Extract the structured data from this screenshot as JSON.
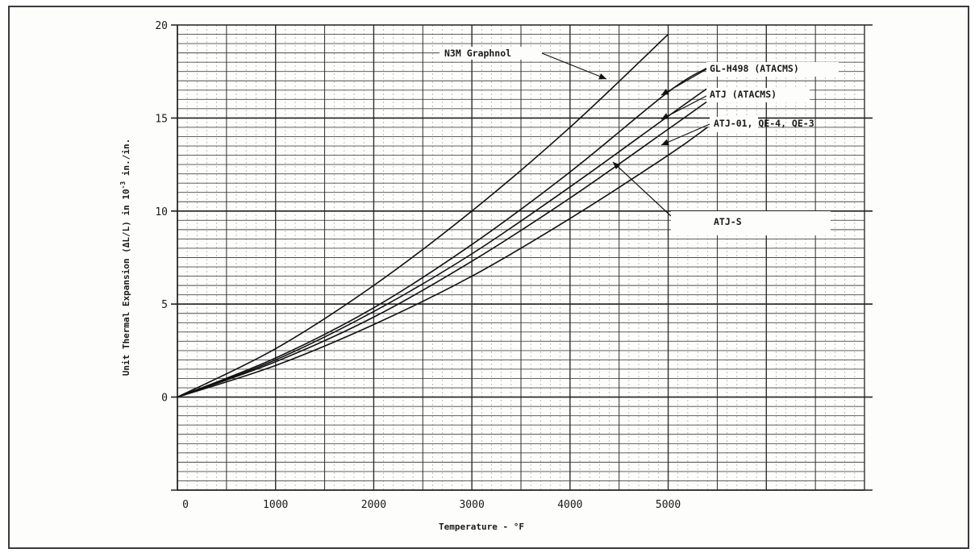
{
  "chart_data": {
    "type": "line",
    "title": "",
    "xlabel": "Temperature - °F",
    "ylabel_parts": {
      "base": "Unit Thermal Expansion (ΔL/L) in 10",
      "exp": "-3",
      "unit": " in./in."
    },
    "xlim": [
      0,
      7000
    ],
    "ylim": [
      -5,
      20
    ],
    "x_ticks": [
      0,
      1000,
      2000,
      3000,
      4000,
      5000
    ],
    "x_tick_labels": [
      "0",
      "1000",
      "2000",
      "3000",
      "4000",
      "5000"
    ],
    "y_ticks": [
      0,
      5,
      10,
      15,
      20
    ],
    "y_tick_labels": [
      "0",
      "5",
      "10",
      "15",
      "20"
    ],
    "grid": true,
    "series": [
      {
        "name": "N3M Graphnol",
        "x": [
          0,
          1000,
          2000,
          3000,
          4000,
          5000
        ],
        "y": [
          0,
          2.6,
          6.0,
          10.0,
          14.5,
          19.5
        ]
      },
      {
        "name": "GL-H498 (ATACMS)",
        "x": [
          0,
          1000,
          2000,
          3000,
          4000,
          5000,
          5400
        ],
        "y": [
          0,
          2.1,
          4.8,
          8.2,
          12.1,
          16.4,
          17.7
        ]
      },
      {
        "name": "ATJ (ATACMS)",
        "x": [
          0,
          1000,
          2000,
          3000,
          4000,
          5000,
          5400
        ],
        "y": [
          0,
          2.0,
          4.6,
          7.7,
          11.3,
          15.1,
          16.6
        ]
      },
      {
        "name": "ATJ-01, QE-4, QE-3",
        "x": [
          0,
          1000,
          2000,
          3000,
          4000,
          5000,
          5400
        ],
        "y": [
          0,
          1.9,
          4.3,
          7.3,
          10.7,
          14.4,
          15.9
        ]
      },
      {
        "name": "ATJ-S",
        "x": [
          0,
          1000,
          2000,
          3000,
          4000,
          5000,
          5400
        ],
        "y": [
          0,
          1.7,
          3.9,
          6.5,
          9.6,
          13.0,
          14.5
        ]
      }
    ],
    "annotations": [
      "N3M Graphnol",
      "GL-H498 (ATACMS)",
      "ATJ (ATACMS)",
      "ATJ-S",
      "ATJ-01, QE-4, QE-3"
    ]
  }
}
